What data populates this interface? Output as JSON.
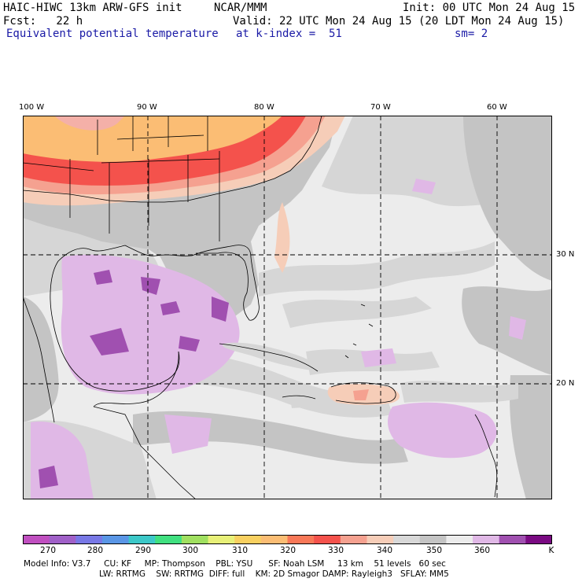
{
  "header": {
    "model": "HAIC-HIWC 13km ARW-GFS init",
    "org": "NCAR/MMM",
    "init": "Init: 00 UTC Mon 24 Aug 15",
    "fcst": "Fcst:   22 h",
    "valid": "Valid: 22 UTC Mon 24 Aug 15 (20 LDT Mon 24 Aug 15)",
    "field": "Equivalent potential temperature",
    "level": "at k-index =  51",
    "smooth": "sm= 2"
  },
  "axes": {
    "lon_labels": [
      "100 W",
      "90 W",
      "80 W",
      "70 W",
      "60 W"
    ],
    "lat_labels": [
      "30 N",
      "20 N"
    ]
  },
  "colorbar": {
    "labels": [
      "270",
      "280",
      "290",
      "300",
      "310",
      "320",
      "330",
      "340",
      "350",
      "360"
    ],
    "unit": "K",
    "colors": [
      "#c04fc0",
      "#a060c8",
      "#7878e6",
      "#5a96e6",
      "#3cc8c8",
      "#40e080",
      "#a0e060",
      "#e8f078",
      "#f8d060",
      "#fbbd74",
      "#f87858",
      "#f4524c",
      "#f5a190",
      "#f6cdb8",
      "#d8d8d8",
      "#c4c4c4",
      "#ececec",
      "#e0b8e6",
      "#a050b0",
      "#7a0a82"
    ]
  },
  "footer": {
    "line1": "Model Info: V3.7     CU: KF     MP: Thompson    PBL: YSU      SF: Noah LSM     13 km    51 levels   60 sec",
    "line2": "LW: RRTMG    SW: RRTMG  DIFF: full    KM: 2D Smagor DAMP: Rayleigh3   SFLAY: MM5"
  },
  "map_colors": {
    "base": "#ececec",
    "grey1": "#d6d6d6",
    "grey2": "#c4c4c4",
    "lilac": "#e0b8e6",
    "purple": "#a050b0",
    "peach": "#f6cdb8",
    "salmon": "#f5a190",
    "orange": "#fbbd74",
    "red": "#f4524c"
  }
}
